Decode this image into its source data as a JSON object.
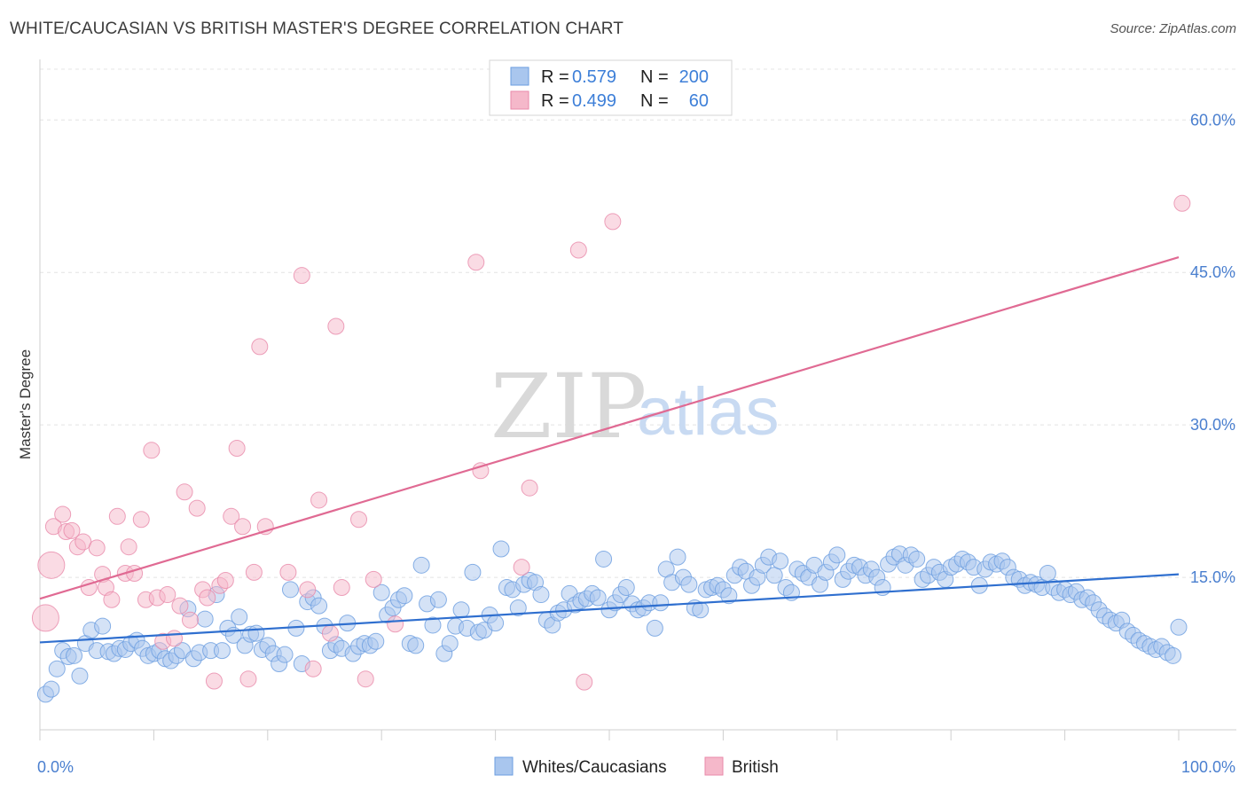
{
  "header": {
    "title": "WHITE/CAUCASIAN VS BRITISH MASTER'S DEGREE CORRELATION CHART",
    "source": "Source: ZipAtlas.com"
  },
  "watermark": {
    "zip": "ZIP",
    "atlas": "atlas"
  },
  "legend_top": [
    {
      "r_label": "R = ",
      "r_value": "0.579",
      "n_label": "N = ",
      "n_value": "200",
      "color": "#a9c6ee"
    },
    {
      "r_label": "R = ",
      "r_value": "0.499",
      "n_label": "N = ",
      "n_value": "60",
      "color": "#f5b8ca"
    }
  ],
  "legend_bottom": [
    {
      "label": "Whites/Caucasians",
      "color": "#a9c6ee"
    },
    {
      "label": "British",
      "color": "#f5b8ca"
    }
  ],
  "chart_data": {
    "type": "scatter",
    "title": "WHITE/CAUCASIAN VS BRITISH MASTER'S DEGREE CORRELATION CHART",
    "xlabel": "",
    "ylabel": "Master's Degree",
    "xlim": [
      0,
      100
    ],
    "ylim": [
      0,
      60
    ],
    "x_tick_labels": [
      "0.0%",
      "100.0%"
    ],
    "y_ticks": [
      15,
      30,
      45,
      60
    ],
    "y_tick_labels": [
      "15.0%",
      "30.0%",
      "45.0%",
      "60.0%"
    ],
    "grid": true,
    "series": [
      {
        "name": "Whites/Caucasians",
        "color": "#6b9ee0",
        "fill": "#a9c6ee",
        "trend": {
          "x": [
            0,
            100
          ],
          "y": [
            8.6,
            15.3
          ],
          "color": "#2f6fcf"
        },
        "points": [
          [
            0.5,
            3.5
          ],
          [
            1,
            4
          ],
          [
            1.5,
            6
          ],
          [
            2,
            7.8
          ],
          [
            2.5,
            7.2
          ],
          [
            3,
            7.3
          ],
          [
            3.5,
            5.3
          ],
          [
            4,
            8.5
          ],
          [
            4.5,
            9.8
          ],
          [
            5,
            7.8
          ],
          [
            5.5,
            10.2
          ],
          [
            6,
            7.7
          ],
          [
            6.5,
            7.5
          ],
          [
            7,
            8
          ],
          [
            7.5,
            7.9
          ],
          [
            8,
            8.5
          ],
          [
            8.5,
            8.8
          ],
          [
            9,
            8
          ],
          [
            9.5,
            7.3
          ],
          [
            10,
            7.5
          ],
          [
            10.5,
            7.8
          ],
          [
            11,
            7
          ],
          [
            11.5,
            6.8
          ],
          [
            12,
            7.3
          ],
          [
            12.5,
            7.8
          ],
          [
            13,
            11.9
          ],
          [
            13.5,
            7
          ],
          [
            14,
            7.6
          ],
          [
            14.5,
            10.9
          ],
          [
            15,
            7.8
          ],
          [
            15.5,
            13.3
          ],
          [
            16,
            7.8
          ],
          [
            16.5,
            10
          ],
          [
            17,
            9.3
          ],
          [
            17.5,
            11.1
          ],
          [
            18,
            8.3
          ],
          [
            18.5,
            9.4
          ],
          [
            19,
            9.5
          ],
          [
            19.5,
            7.9
          ],
          [
            20,
            8.3
          ],
          [
            20.5,
            7.5
          ],
          [
            21,
            6.5
          ],
          [
            21.5,
            7.4
          ],
          [
            22,
            13.8
          ],
          [
            22.5,
            10
          ],
          [
            23,
            6.5
          ],
          [
            23.5,
            12.6
          ],
          [
            24,
            13
          ],
          [
            24.5,
            12.2
          ],
          [
            25,
            10.2
          ],
          [
            25.5,
            7.8
          ],
          [
            26,
            8.4
          ],
          [
            26.5,
            8
          ],
          [
            27,
            10.5
          ],
          [
            27.5,
            7.5
          ],
          [
            28,
            8.2
          ],
          [
            28.5,
            8.5
          ],
          [
            29,
            8.3
          ],
          [
            29.5,
            8.7
          ],
          [
            30,
            13.5
          ],
          [
            30.5,
            11.3
          ],
          [
            31,
            12
          ],
          [
            31.5,
            12.8
          ],
          [
            32,
            13.2
          ],
          [
            32.5,
            8.5
          ],
          [
            33,
            8.3
          ],
          [
            33.5,
            16.2
          ],
          [
            34,
            12.4
          ],
          [
            34.5,
            10.3
          ],
          [
            35,
            12.8
          ],
          [
            35.5,
            7.5
          ],
          [
            36,
            8.5
          ],
          [
            36.5,
            10.2
          ],
          [
            37,
            11.8
          ],
          [
            37.5,
            10
          ],
          [
            38,
            15.5
          ],
          [
            38.5,
            9.6
          ],
          [
            39,
            9.8
          ],
          [
            39.5,
            11.3
          ],
          [
            40,
            10.5
          ],
          [
            40.5,
            17.8
          ],
          [
            41,
            14
          ],
          [
            41.5,
            13.8
          ],
          [
            42,
            12
          ],
          [
            42.5,
            14.3
          ],
          [
            43,
            14.7
          ],
          [
            43.5,
            14.5
          ],
          [
            44,
            13.3
          ],
          [
            44.5,
            10.8
          ],
          [
            45,
            10.3
          ],
          [
            45.5,
            11.5
          ],
          [
            46,
            11.8
          ],
          [
            46.5,
            13.4
          ],
          [
            47,
            12.3
          ],
          [
            47.5,
            12.7
          ],
          [
            48,
            12.9
          ],
          [
            48.5,
            13.4
          ],
          [
            49,
            13
          ],
          [
            49.5,
            16.8
          ],
          [
            50,
            11.8
          ],
          [
            50.5,
            12.5
          ],
          [
            51,
            13.3
          ],
          [
            51.5,
            14
          ],
          [
            52,
            12.4
          ],
          [
            52.5,
            11.8
          ],
          [
            53,
            12
          ],
          [
            53.5,
            12.5
          ],
          [
            54,
            10
          ],
          [
            54.5,
            12.5
          ],
          [
            55,
            15.8
          ],
          [
            55.5,
            14.5
          ],
          [
            56,
            17
          ],
          [
            56.5,
            15
          ],
          [
            57,
            14.3
          ],
          [
            57.5,
            12
          ],
          [
            58,
            11.8
          ],
          [
            58.5,
            13.8
          ],
          [
            59,
            14
          ],
          [
            59.5,
            14.2
          ],
          [
            60,
            13.8
          ],
          [
            60.5,
            13.2
          ],
          [
            61,
            15.2
          ],
          [
            61.5,
            16
          ],
          [
            62,
            15.6
          ],
          [
            62.5,
            14.2
          ],
          [
            63,
            15
          ],
          [
            63.5,
            16.2
          ],
          [
            64,
            17
          ],
          [
            64.5,
            15.2
          ],
          [
            65,
            16.6
          ],
          [
            65.5,
            14
          ],
          [
            66,
            13.5
          ],
          [
            66.5,
            15.8
          ],
          [
            67,
            15.4
          ],
          [
            67.5,
            15
          ],
          [
            68,
            16.2
          ],
          [
            68.5,
            14.3
          ],
          [
            69,
            15.5
          ],
          [
            69.5,
            16.5
          ],
          [
            70,
            17.2
          ],
          [
            70.5,
            14.8
          ],
          [
            71,
            15.6
          ],
          [
            71.5,
            16.2
          ],
          [
            72,
            16
          ],
          [
            72.5,
            15.2
          ],
          [
            73,
            15.8
          ],
          [
            73.5,
            15
          ],
          [
            74,
            14
          ],
          [
            74.5,
            16.3
          ],
          [
            75,
            17
          ],
          [
            75.5,
            17.3
          ],
          [
            76,
            16.2
          ],
          [
            76.5,
            17.2
          ],
          [
            77,
            16.8
          ],
          [
            77.5,
            14.8
          ],
          [
            78,
            15.2
          ],
          [
            78.5,
            16
          ],
          [
            79,
            15.5
          ],
          [
            79.5,
            14.8
          ],
          [
            80,
            16
          ],
          [
            80.5,
            16.3
          ],
          [
            81,
            16.8
          ],
          [
            81.5,
            16.5
          ],
          [
            82,
            16
          ],
          [
            82.5,
            14.2
          ],
          [
            83,
            15.8
          ],
          [
            83.5,
            16.5
          ],
          [
            84,
            16.3
          ],
          [
            84.5,
            16.6
          ],
          [
            85,
            16
          ],
          [
            85.5,
            15
          ],
          [
            86,
            14.8
          ],
          [
            86.5,
            14.2
          ],
          [
            87,
            14.5
          ],
          [
            87.5,
            14.3
          ],
          [
            88,
            14
          ],
          [
            88.5,
            15.4
          ],
          [
            89,
            14
          ],
          [
            89.5,
            13.5
          ],
          [
            90,
            13.8
          ],
          [
            90.5,
            13.3
          ],
          [
            91,
            13.6
          ],
          [
            91.5,
            12.8
          ],
          [
            92,
            13
          ],
          [
            92.5,
            12.5
          ],
          [
            93,
            11.8
          ],
          [
            93.5,
            11.2
          ],
          [
            94,
            10.8
          ],
          [
            94.5,
            10.5
          ],
          [
            95,
            10.8
          ],
          [
            95.5,
            9.7
          ],
          [
            96,
            9.3
          ],
          [
            96.5,
            8.8
          ],
          [
            97,
            8.5
          ],
          [
            97.5,
            8.2
          ],
          [
            98,
            7.9
          ],
          [
            98.5,
            8.2
          ],
          [
            99,
            7.6
          ],
          [
            99.5,
            7.3
          ],
          [
            100,
            10.1
          ]
        ]
      },
      {
        "name": "British",
        "color": "#e98aaa",
        "fill": "#f5b8ca",
        "trend": {
          "x": [
            0,
            100
          ],
          "y": [
            12.9,
            46.5
          ],
          "color": "#e06a93"
        },
        "points": [
          [
            0.5,
            11
          ],
          [
            1,
            16.2
          ],
          [
            1.2,
            20
          ],
          [
            2,
            21.2
          ],
          [
            2.3,
            19.5
          ],
          [
            2.8,
            19.6
          ],
          [
            3.3,
            18
          ],
          [
            3.8,
            18.5
          ],
          [
            4.3,
            14
          ],
          [
            5,
            17.9
          ],
          [
            5.5,
            15.3
          ],
          [
            5.8,
            14
          ],
          [
            6.3,
            12.8
          ],
          [
            6.8,
            21
          ],
          [
            7.5,
            15.4
          ],
          [
            7.8,
            18
          ],
          [
            8.3,
            15.4
          ],
          [
            8.9,
            20.7
          ],
          [
            9.3,
            12.8
          ],
          [
            9.8,
            27.5
          ],
          [
            10.3,
            13
          ],
          [
            10.8,
            8.7
          ],
          [
            11.2,
            13.3
          ],
          [
            11.8,
            9
          ],
          [
            12.3,
            12.2
          ],
          [
            12.7,
            23.4
          ],
          [
            13.2,
            10.8
          ],
          [
            13.8,
            21.8
          ],
          [
            14.3,
            13.8
          ],
          [
            14.7,
            13
          ],
          [
            15.3,
            4.8
          ],
          [
            15.8,
            14.2
          ],
          [
            16.3,
            14.7
          ],
          [
            16.8,
            21
          ],
          [
            17.3,
            27.7
          ],
          [
            17.8,
            20
          ],
          [
            18.3,
            5
          ],
          [
            18.8,
            15.5
          ],
          [
            19.3,
            37.7
          ],
          [
            19.8,
            20
          ],
          [
            21.8,
            15.5
          ],
          [
            23,
            44.7
          ],
          [
            23.5,
            13.8
          ],
          [
            24,
            6
          ],
          [
            24.5,
            22.6
          ],
          [
            25.5,
            9.5
          ],
          [
            26,
            39.7
          ],
          [
            26.5,
            14
          ],
          [
            28,
            20.7
          ],
          [
            28.6,
            5
          ],
          [
            29.3,
            14.8
          ],
          [
            31.2,
            10.4
          ],
          [
            38.3,
            46
          ],
          [
            38.7,
            25.5
          ],
          [
            42.3,
            16
          ],
          [
            43,
            23.8
          ],
          [
            47.3,
            47.2
          ],
          [
            47.8,
            4.7
          ],
          [
            50.3,
            50
          ],
          [
            100.3,
            51.8
          ]
        ]
      }
    ]
  }
}
